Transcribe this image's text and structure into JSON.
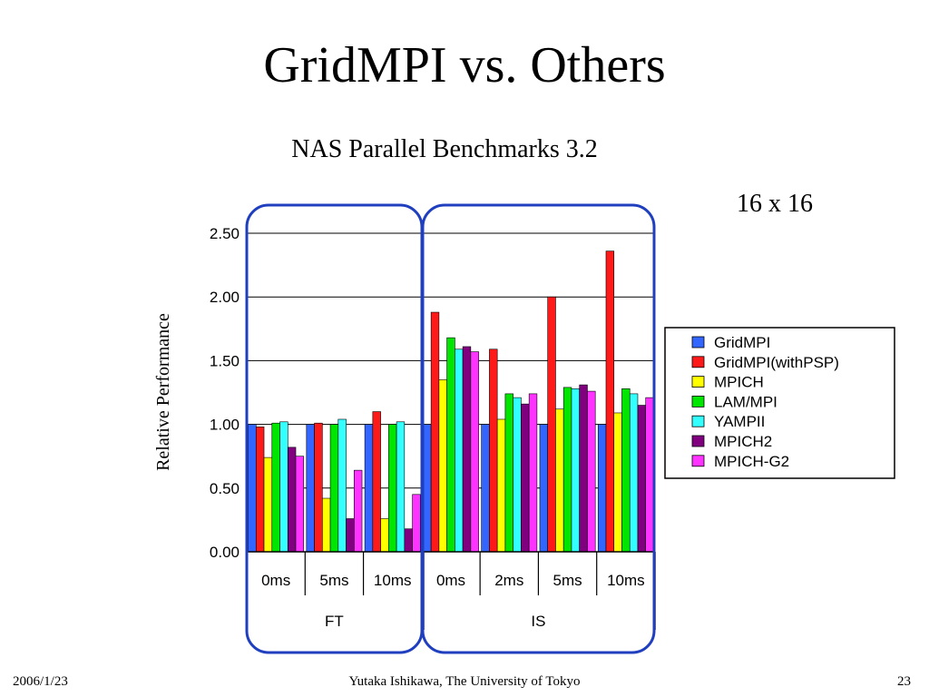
{
  "slide": {
    "title": "GridMPI vs. Others",
    "footer_date": "2006/1/23",
    "footer_author": "Yutaka Ishikawa, The University of Tokyo",
    "footer_page": "23",
    "config_label": "16 x 16"
  },
  "chart_data": {
    "type": "bar",
    "title": "NAS Parallel Benchmarks 3.2",
    "ylabel": "Relative Performance",
    "ylim": [
      0,
      2.5
    ],
    "yticks": [
      "0.00",
      "0.50",
      "1.00",
      "1.50",
      "2.00",
      "2.50"
    ],
    "grid": true,
    "legend_position": "right",
    "categories": [
      "0ms",
      "5ms",
      "10ms",
      "0ms",
      "2ms",
      "5ms",
      "10ms"
    ],
    "groups": [
      {
        "label": "FT",
        "categories": [
          "0ms",
          "5ms",
          "10ms"
        ]
      },
      {
        "label": "IS",
        "categories": [
          "0ms",
          "2ms",
          "5ms",
          "10ms"
        ]
      }
    ],
    "series": [
      {
        "name": "GridMPI",
        "color": "#3366ff",
        "values": [
          1.0,
          1.0,
          1.0,
          1.0,
          1.0,
          1.0,
          1.0
        ]
      },
      {
        "name": "GridMPI(withPSP)",
        "color": "#ff1a1a",
        "values": [
          0.98,
          1.01,
          1.1,
          1.88,
          1.59,
          2.0,
          2.36
        ]
      },
      {
        "name": "MPICH",
        "color": "#ffff00",
        "values": [
          0.74,
          0.42,
          0.26,
          1.35,
          1.04,
          1.12,
          1.09
        ]
      },
      {
        "name": "LAM/MPI",
        "color": "#00e600",
        "values": [
          1.01,
          1.0,
          1.0,
          1.68,
          1.24,
          1.29,
          1.28
        ]
      },
      {
        "name": "YAMPII",
        "color": "#33ffff",
        "values": [
          1.02,
          1.04,
          1.02,
          1.59,
          1.21,
          1.28,
          1.24
        ]
      },
      {
        "name": "MPICH2",
        "color": "#800080",
        "values": [
          0.82,
          0.26,
          0.18,
          1.61,
          1.16,
          1.31,
          1.15
        ]
      },
      {
        "name": "MPICH-G2",
        "color": "#ff33ff",
        "values": [
          0.75,
          0.64,
          0.45,
          1.57,
          1.24,
          1.26,
          1.21
        ]
      }
    ]
  }
}
